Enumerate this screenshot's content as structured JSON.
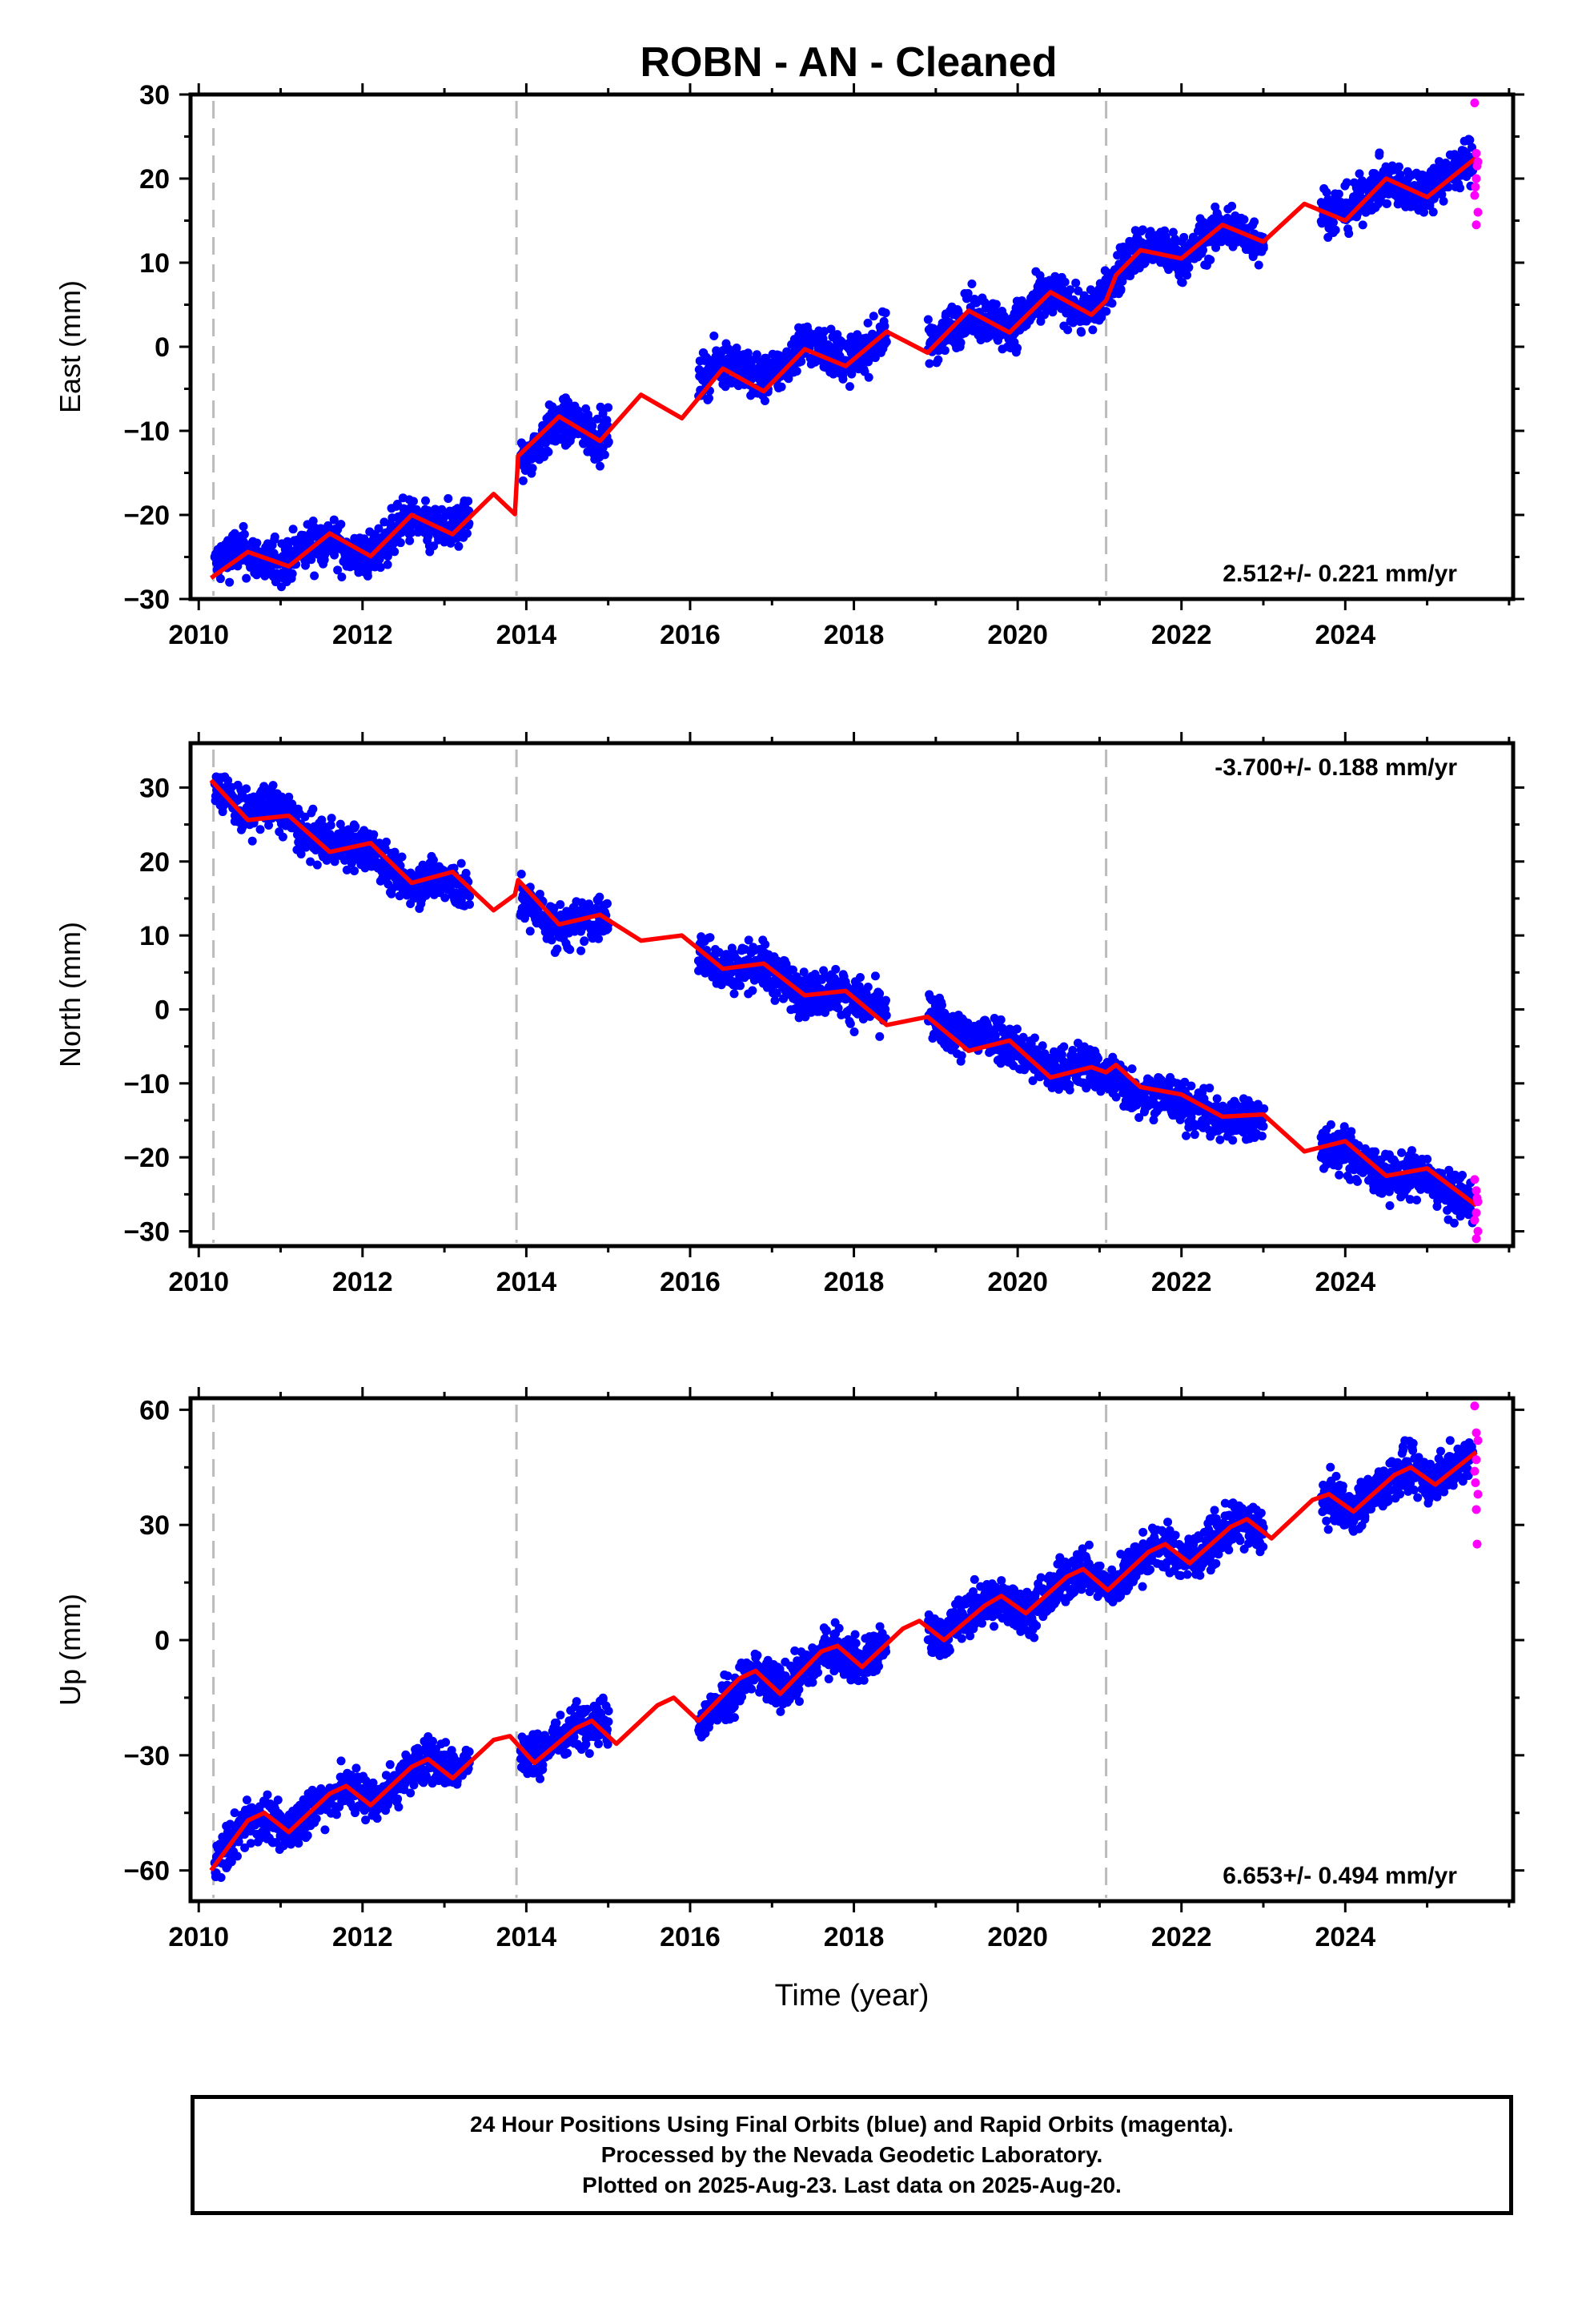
{
  "title": "ROBN  - AN - Cleaned",
  "colors": {
    "final_orbits": "#0000ff",
    "rapid_orbits": "#ff00ff",
    "model_fit": "#ff0000",
    "event_lines": "#bbbbbb"
  },
  "footer": {
    "line1": "24 Hour Positions Using Final Orbits (blue) and Rapid Orbits (magenta).",
    "line2": "Processed by the Nevada Geodetic Laboratory.",
    "line3": "Plotted on 2025-Aug-23. Last data on 2025-Aug-20."
  },
  "chart_data": [
    {
      "type": "scatter",
      "component": "East",
      "ylabel": "East (mm)",
      "xlabel": "",
      "xlim": [
        2009.9,
        2026.05
      ],
      "ylim": [
        -30,
        30
      ],
      "x_ticks": [
        2010,
        2012,
        2014,
        2016,
        2018,
        2020,
        2022,
        2024
      ],
      "y_ticks": [
        -30,
        -20,
        -10,
        0,
        10,
        20,
        30
      ],
      "velocity_label": "2.512+/- 0.221 mm/yr",
      "velocity_label_position": "bottom-right",
      "event_lines": [
        2010.18,
        2013.88,
        2021.08
      ],
      "data_gaps": [
        [
          2013.3,
          2013.92
        ],
        [
          2015.0,
          2016.1
        ],
        [
          2018.4,
          2018.9
        ],
        [
          2023.0,
          2023.7
        ]
      ],
      "series": [
        {
          "name": "model",
          "x": [
            2010.15,
            2010.6,
            2011.1,
            2011.6,
            2012.1,
            2012.6,
            2013.1,
            2013.6,
            2013.86,
            2013.9,
            2014.4,
            2014.9,
            2015.4,
            2015.9,
            2016.4,
            2016.9,
            2017.4,
            2017.9,
            2018.4,
            2018.9,
            2019.4,
            2019.9,
            2020.4,
            2020.9,
            2021.08,
            2021.2,
            2021.5,
            2022.0,
            2022.5,
            2023.0,
            2023.5,
            2024.0,
            2024.5,
            2025.0,
            2025.6
          ],
          "y": [
            -27.5,
            -24.4,
            -26.1,
            -22.2,
            -24.9,
            -20.0,
            -22.3,
            -17.5,
            -19.9,
            -13.0,
            -8.3,
            -11.2,
            -5.7,
            -8.5,
            -2.6,
            -5.3,
            -0.3,
            -2.3,
            1.8,
            -0.7,
            4.3,
            1.7,
            6.5,
            3.8,
            5.5,
            8.5,
            11.5,
            10.5,
            14.5,
            12.5,
            17.0,
            15.0,
            20.0,
            17.8,
            22.5
          ]
        },
        {
          "name": "final_orbits",
          "x": [
            2010.2,
            2010.4,
            2010.6,
            2010.8,
            2011.0,
            2011.3,
            2011.6,
            2011.9,
            2012.2,
            2012.5,
            2012.8,
            2013.1,
            2014.0,
            2014.3,
            2014.6,
            2014.9,
            2016.2,
            2016.5,
            2016.8,
            2017.1,
            2017.4,
            2017.7,
            2018.0,
            2018.3,
            2019.0,
            2019.3,
            2019.6,
            2019.9,
            2020.2,
            2020.5,
            2020.8,
            2021.1,
            2021.4,
            2021.7,
            2022.0,
            2022.3,
            2022.6,
            2022.9,
            2023.8,
            2024.1,
            2024.4,
            2024.7,
            2025.0,
            2025.3,
            2025.55
          ],
          "y": [
            -25.0,
            -23.0,
            -24.5,
            -26.5,
            -25.5,
            -23.0,
            -23.5,
            -26.0,
            -24.0,
            -20.5,
            -22.5,
            -21.0,
            -14.5,
            -10.0,
            -9.0,
            -11.0,
            -1.5,
            -0.5,
            -3.0,
            -2.0,
            1.5,
            0.0,
            -1.5,
            1.0,
            1.5,
            3.0,
            3.5,
            2.0,
            5.0,
            6.0,
            4.0,
            7.0,
            11.5,
            12.5,
            10.0,
            13.0,
            14.5,
            12.5,
            16.5,
            17.5,
            19.5,
            18.0,
            19.5,
            21.5,
            22.5
          ]
        },
        {
          "name": "rapid_orbits",
          "x": [
            2025.58,
            2025.6,
            2025.62,
            2025.6,
            2025.58,
            2025.62,
            2025.6,
            2025.61,
            2025.59
          ],
          "y": [
            29.0,
            23.0,
            22.0,
            20.0,
            18.0,
            16.0,
            14.5,
            21.5,
            19.0
          ]
        }
      ]
    },
    {
      "type": "scatter",
      "component": "North",
      "ylabel": "North (mm)",
      "xlabel": "",
      "xlim": [
        2009.9,
        2026.05
      ],
      "ylim": [
        -32,
        36
      ],
      "x_ticks": [
        2010,
        2012,
        2014,
        2016,
        2018,
        2020,
        2022,
        2024
      ],
      "y_ticks": [
        -30,
        -20,
        -10,
        0,
        10,
        20,
        30
      ],
      "velocity_label": "-3.700+/- 0.188 mm/yr",
      "velocity_label_position": "top-right",
      "event_lines": [
        2010.18,
        2013.88,
        2021.08
      ],
      "data_gaps": [
        [
          2013.3,
          2013.92
        ],
        [
          2015.0,
          2016.1
        ],
        [
          2018.4,
          2018.9
        ],
        [
          2023.0,
          2023.7
        ]
      ],
      "series": [
        {
          "name": "model",
          "x": [
            2010.15,
            2010.6,
            2011.1,
            2011.6,
            2012.1,
            2012.6,
            2013.1,
            2013.6,
            2013.86,
            2013.9,
            2014.4,
            2014.9,
            2015.4,
            2015.9,
            2016.4,
            2016.9,
            2017.4,
            2017.9,
            2018.4,
            2018.9,
            2019.4,
            2019.9,
            2020.4,
            2020.9,
            2021.08,
            2021.2,
            2021.5,
            2022.0,
            2022.5,
            2023.0,
            2023.5,
            2024.0,
            2024.5,
            2025.0,
            2025.6
          ],
          "y": [
            31.0,
            25.6,
            26.2,
            21.3,
            22.5,
            17.1,
            18.6,
            13.4,
            15.5,
            17.5,
            11.5,
            12.8,
            9.3,
            10.0,
            5.5,
            6.2,
            1.9,
            2.5,
            -2.1,
            -1.0,
            -5.6,
            -4.2,
            -9.2,
            -7.8,
            -8.5,
            -7.5,
            -10.5,
            -11.5,
            -14.5,
            -14.2,
            -19.2,
            -17.8,
            -22.5,
            -21.5,
            -26.5
          ]
        },
        {
          "name": "final_orbits",
          "x": [
            2010.2,
            2010.4,
            2010.6,
            2010.8,
            2011.0,
            2011.3,
            2011.6,
            2011.9,
            2012.2,
            2012.5,
            2012.8,
            2013.1,
            2014.0,
            2014.3,
            2014.6,
            2014.9,
            2016.2,
            2016.5,
            2016.8,
            2017.1,
            2017.4,
            2017.7,
            2018.0,
            2018.3,
            2019.0,
            2019.3,
            2019.6,
            2019.9,
            2020.2,
            2020.5,
            2020.8,
            2021.1,
            2021.4,
            2021.7,
            2022.0,
            2022.3,
            2022.6,
            2022.9,
            2023.8,
            2024.1,
            2024.4,
            2024.7,
            2025.0,
            2025.3,
            2025.55
          ],
          "y": [
            30.5,
            28.5,
            27.0,
            29.0,
            27.5,
            22.5,
            23.5,
            22.0,
            19.5,
            16.5,
            18.0,
            15.5,
            13.0,
            10.5,
            11.0,
            12.0,
            7.0,
            5.0,
            6.5,
            3.5,
            2.0,
            3.0,
            1.0,
            1.5,
            -1.0,
            -3.0,
            -1.5,
            -5.0,
            -6.5,
            -8.0,
            -7.0,
            -9.5,
            -12.5,
            -11.5,
            -14.0,
            -14.5,
            -15.5,
            -15.0,
            -19.0,
            -21.0,
            -23.0,
            -22.5,
            -24.0,
            -26.5,
            -26.0
          ]
        },
        {
          "name": "rapid_orbits",
          "x": [
            2025.58,
            2025.6,
            2025.62,
            2025.6,
            2025.58,
            2025.62,
            2025.6,
            2025.61
          ],
          "y": [
            -23.0,
            -24.5,
            -26.0,
            -27.5,
            -28.5,
            -30.0,
            -31.0,
            -25.5
          ]
        }
      ]
    },
    {
      "type": "scatter",
      "component": "Up",
      "ylabel": "Up (mm)",
      "xlabel": "Time (year)",
      "xlim": [
        2009.9,
        2026.05
      ],
      "ylim": [
        -68,
        63
      ],
      "x_ticks": [
        2010,
        2012,
        2014,
        2016,
        2018,
        2020,
        2022,
        2024
      ],
      "y_ticks": [
        -60,
        -30,
        0,
        30,
        60
      ],
      "velocity_label": "6.653+/- 0.494 mm/yr",
      "velocity_label_position": "bottom-right",
      "event_lines": [
        2010.18,
        2013.88,
        2021.08
      ],
      "data_gaps": [
        [
          2013.3,
          2013.92
        ],
        [
          2015.0,
          2016.1
        ],
        [
          2018.4,
          2018.9
        ],
        [
          2023.0,
          2023.7
        ]
      ],
      "series": [
        {
          "name": "model",
          "x": [
            2010.15,
            2010.6,
            2010.8,
            2011.1,
            2011.6,
            2011.8,
            2012.1,
            2012.6,
            2012.8,
            2013.1,
            2013.6,
            2013.8,
            2014.1,
            2014.6,
            2014.8,
            2015.1,
            2015.6,
            2015.8,
            2016.1,
            2016.6,
            2016.8,
            2017.1,
            2017.6,
            2017.8,
            2018.1,
            2018.6,
            2018.8,
            2019.1,
            2019.6,
            2019.8,
            2020.1,
            2020.6,
            2020.8,
            2021.1,
            2021.6,
            2021.8,
            2022.1,
            2022.6,
            2022.8,
            2023.1,
            2023.6,
            2023.8,
            2024.1,
            2024.6,
            2024.8,
            2025.1,
            2025.6
          ],
          "y": [
            -60.0,
            -47.0,
            -45.0,
            -50.0,
            -40.0,
            -38.0,
            -43.0,
            -33.0,
            -31.0,
            -36.0,
            -26.0,
            -25.0,
            -32.0,
            -23.0,
            -21.0,
            -27.0,
            -17.0,
            -15.0,
            -21.0,
            -10.0,
            -8.0,
            -14.0,
            -3.0,
            -1.5,
            -7.0,
            3.0,
            5.0,
            0.0,
            9.0,
            11.5,
            7.0,
            16.5,
            18.5,
            13.0,
            23.0,
            25.0,
            20.0,
            29.5,
            31.5,
            26.5,
            36.5,
            38.0,
            33.5,
            43.0,
            45.0,
            40.5,
            49.0
          ]
        },
        {
          "name": "final_orbits",
          "x": [
            2010.2,
            2010.4,
            2010.6,
            2010.8,
            2011.0,
            2011.3,
            2011.6,
            2011.9,
            2012.2,
            2012.5,
            2012.8,
            2013.1,
            2014.0,
            2014.3,
            2014.6,
            2014.9,
            2016.2,
            2016.5,
            2016.8,
            2017.1,
            2017.4,
            2017.7,
            2018.0,
            2018.3,
            2019.0,
            2019.3,
            2019.6,
            2019.9,
            2020.2,
            2020.5,
            2020.8,
            2021.1,
            2021.4,
            2021.7,
            2022.0,
            2022.3,
            2022.6,
            2022.9,
            2023.8,
            2024.1,
            2024.4,
            2024.7,
            2025.0,
            2025.3,
            2025.55
          ],
          "y": [
            -58.0,
            -52.0,
            -46.0,
            -48.0,
            -51.0,
            -44.0,
            -41.0,
            -38.0,
            -42.0,
            -36.0,
            -30.0,
            -32.0,
            -30.0,
            -26.0,
            -22.0,
            -19.0,
            -21.0,
            -16.0,
            -9.0,
            -13.0,
            -8.0,
            -2.0,
            -5.0,
            -3.0,
            1.0,
            6.0,
            11.0,
            8.0,
            8.0,
            14.0,
            19.0,
            14.0,
            18.0,
            25.0,
            21.0,
            24.0,
            30.0,
            28.0,
            36.0,
            35.0,
            40.0,
            44.0,
            42.0,
            46.0,
            49.0
          ]
        },
        {
          "name": "rapid_orbits",
          "x": [
            2025.58,
            2025.6,
            2025.62,
            2025.6,
            2025.58,
            2025.62,
            2025.6,
            2025.61,
            2025.59
          ],
          "y": [
            61.0,
            54.0,
            52.0,
            47.0,
            44.0,
            38.0,
            34.0,
            25.0,
            41.0
          ]
        }
      ]
    }
  ]
}
